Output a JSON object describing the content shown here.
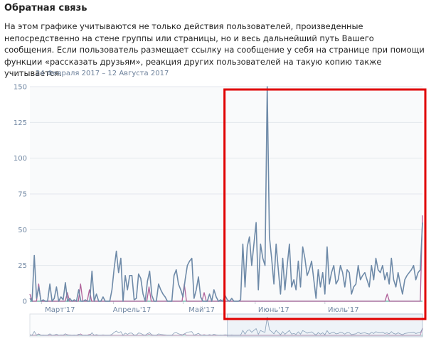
{
  "section": {
    "title": "Обратная связь",
    "description": "На этом графике учитываются не только действия пользователей, произведенные непосредственно на стене группы или страницы, но и весь дальнейший путь Вашего сообщения. Если пользователь размещает ссылку на сообщение у себя на странице при помощи функции «рассказать друзьям», реакция других пользователей на такую копию также учитывается.",
    "date_range": "24 Февраля 2017 – 12 Августа 2017"
  },
  "colors": {
    "main": "#6e8aa8",
    "pink": "#b0629a",
    "teal": "#5fb1a1",
    "highlight": "#e00000",
    "grid": "#e3e7ec",
    "plot_bg": "#f9fafb"
  },
  "chart_data": {
    "type": "line",
    "title": "",
    "xlabel": "",
    "ylabel": "",
    "ylim": [
      0,
      150
    ],
    "yticks": [
      0,
      25,
      50,
      75,
      100,
      125,
      150
    ],
    "x_ticks": [
      {
        "label": "Март'17",
        "date": "2017-03-01"
      },
      {
        "label": "Апрель'17",
        "date": "2017-04-01"
      },
      {
        "label": "Май'17",
        "date": "2017-05-01"
      },
      {
        "label": "Июнь'17",
        "date": "2017-06-01"
      },
      {
        "label": "Июль'17",
        "date": "2017-07-01"
      }
    ],
    "start_date": "2017-02-24",
    "end_date": "2017-08-12",
    "highlight": {
      "from": "2017-05-20",
      "to": "2017-08-12"
    },
    "series": [
      {
        "key": "main",
        "values": [
          2,
          0,
          32,
          2,
          10,
          0,
          1,
          0,
          0,
          12,
          0,
          2,
          10,
          0,
          3,
          1,
          13,
          0,
          2,
          0,
          1,
          0,
          8,
          0,
          0,
          1,
          0,
          0,
          21,
          0,
          5,
          0,
          0,
          3,
          0,
          0,
          0,
          8,
          23,
          35,
          20,
          30,
          0,
          18,
          8,
          18,
          18,
          1,
          2,
          19,
          16,
          5,
          0,
          14,
          21,
          4,
          0,
          0,
          12,
          8,
          5,
          3,
          0,
          0,
          0,
          18,
          22,
          12,
          8,
          3,
          15,
          25,
          28,
          30,
          2,
          8,
          17,
          3,
          0,
          0,
          0,
          5,
          0,
          8,
          3,
          0,
          1,
          0,
          4,
          1,
          0,
          2,
          0,
          0,
          0,
          1,
          40,
          10,
          38,
          45,
          25,
          40,
          55,
          8,
          40,
          30,
          25,
          150,
          45,
          30,
          12,
          40,
          22,
          5,
          30,
          8,
          25,
          40,
          10,
          15,
          8,
          28,
          10,
          38,
          30,
          18,
          22,
          28,
          15,
          2,
          22,
          10,
          20,
          5,
          38,
          12,
          20,
          25,
          12,
          15,
          25,
          20,
          10,
          22,
          20,
          5,
          10,
          12,
          25,
          15,
          18,
          20,
          15,
          10,
          25,
          15,
          30,
          22,
          20,
          25,
          15,
          20,
          12,
          30,
          15,
          10,
          20,
          12,
          5,
          15,
          18,
          20,
          22,
          25,
          15,
          20,
          22,
          55
        ]
      },
      {
        "key": "pink",
        "values": [
          5,
          0,
          0,
          0,
          12,
          0,
          0,
          0,
          0,
          0,
          0,
          0,
          0,
          0,
          0,
          0,
          0,
          6,
          0,
          0,
          0,
          0,
          0,
          12,
          0,
          0,
          0,
          8,
          0,
          0,
          0,
          0,
          0,
          0,
          0,
          0,
          0,
          0,
          0,
          0,
          0,
          0,
          0,
          0,
          0,
          0,
          0,
          0,
          0,
          0,
          0,
          0,
          0,
          0,
          10,
          0,
          0,
          0,
          0,
          0,
          0,
          0,
          0,
          0,
          0,
          0,
          0,
          0,
          0,
          0,
          12,
          0,
          0,
          0,
          0,
          0,
          0,
          0,
          0,
          6,
          0,
          0,
          0,
          0,
          0,
          0,
          0,
          0,
          0,
          0,
          0,
          0,
          0,
          0,
          0,
          0,
          0,
          0,
          0,
          0,
          0,
          0,
          0,
          0,
          0,
          0,
          0,
          0,
          0,
          0,
          0,
          0,
          0,
          0,
          0,
          0,
          0,
          0,
          0,
          0,
          0,
          0,
          0,
          0,
          0,
          0,
          0,
          0,
          0,
          0,
          0,
          0,
          0,
          0,
          0,
          0,
          0,
          0,
          0,
          0,
          0,
          0,
          0,
          0,
          0,
          0,
          0,
          0,
          0,
          0,
          0,
          0,
          0,
          0,
          0,
          0,
          0,
          0,
          0,
          0,
          0,
          0,
          5,
          0,
          0,
          0,
          0,
          0,
          0,
          0,
          0,
          0,
          0,
          0,
          0,
          0,
          0,
          0,
          60
        ]
      },
      {
        "key": "teal",
        "values": [
          0,
          0,
          0,
          0,
          0,
          0,
          0,
          0,
          0,
          0,
          0,
          0,
          0,
          0,
          0,
          0,
          0,
          0,
          0,
          0,
          0,
          0,
          0,
          0,
          0,
          0,
          0,
          0,
          0,
          0,
          0,
          0,
          0,
          0,
          0,
          0,
          0,
          0,
          0,
          0,
          0,
          0,
          0,
          0,
          0,
          0,
          0,
          0,
          0,
          0,
          0,
          0,
          0,
          0,
          0,
          0,
          0,
          0,
          0,
          0,
          0,
          0,
          0,
          0,
          0,
          0,
          0,
          0,
          0,
          0,
          0,
          0,
          0,
          0,
          0,
          0,
          0,
          0,
          0,
          0,
          0,
          0,
          0,
          0,
          0,
          0,
          0,
          0,
          0,
          0,
          0,
          0,
          0,
          0,
          0,
          0,
          0,
          0,
          0,
          0,
          0,
          0,
          0,
          0,
          0,
          0,
          0,
          0,
          0,
          0,
          0,
          0,
          0,
          0,
          0,
          0,
          0,
          0,
          0,
          0,
          0,
          0,
          0,
          0,
          0,
          0,
          0,
          0,
          0,
          0,
          0,
          0,
          0,
          0,
          0,
          0,
          0,
          0,
          0,
          0,
          0,
          0,
          0,
          0,
          0,
          0,
          0,
          0,
          0,
          0,
          0,
          0,
          0,
          0,
          0,
          0,
          0,
          0,
          0,
          0,
          0,
          0,
          0,
          0,
          0,
          0,
          0,
          0,
          0,
          0,
          0,
          0,
          0,
          0,
          0,
          0,
          0,
          0,
          0,
          0,
          0,
          0,
          0
        ]
      }
    ]
  }
}
